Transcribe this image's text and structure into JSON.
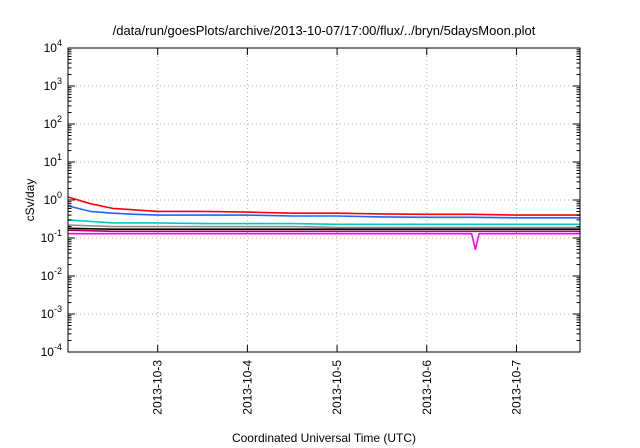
{
  "chart_data": {
    "type": "line",
    "title": "/data/run/goesPlots/archive/2013-10-07/17:00/flux/../bryn/5daysMoon.plot",
    "xlabel": "Coordinated Universal Time (UTC)",
    "ylabel": "cSv/day",
    "yscale": "log",
    "ylim": [
      0.0001,
      10000
    ],
    "xlim": [
      "2013-10-02T00:00",
      "2013-10-07T17:00"
    ],
    "y_ticks": [
      {
        "base": "10",
        "exp": "-4"
      },
      {
        "base": "10",
        "exp": "-3"
      },
      {
        "base": "10",
        "exp": "-2"
      },
      {
        "base": "10",
        "exp": "-1"
      },
      {
        "base": "10",
        "exp": "0"
      },
      {
        "base": "10",
        "exp": "1"
      },
      {
        "base": "10",
        "exp": "2"
      },
      {
        "base": "10",
        "exp": "3"
      },
      {
        "base": "10",
        "exp": "4"
      }
    ],
    "x_ticks": [
      "2013-10-3",
      "2013-10-4",
      "2013-10-5",
      "2013-10-6",
      "2013-10-7"
    ],
    "grid": true,
    "series": [
      {
        "color": "#ff0000",
        "x": [
          "2013-10-02T00:00",
          "2013-10-02T06:00",
          "2013-10-02T12:00",
          "2013-10-02T18:00",
          "2013-10-03T00:00",
          "2013-10-03T12:00",
          "2013-10-04T00:00",
          "2013-10-04T12:00",
          "2013-10-05T00:00",
          "2013-10-05T12:00",
          "2013-10-06T00:00",
          "2013-10-06T12:00",
          "2013-10-07T00:00",
          "2013-10-07T12:00",
          "2013-10-07T17:00"
        ],
        "values": [
          1.2,
          0.8,
          0.6,
          0.55,
          0.5,
          0.5,
          0.48,
          0.45,
          0.45,
          0.43,
          0.42,
          0.42,
          0.4,
          0.4,
          0.4
        ]
      },
      {
        "color": "#1e64ff",
        "x": [
          "2013-10-02T00:00",
          "2013-10-02T06:00",
          "2013-10-02T12:00",
          "2013-10-02T18:00",
          "2013-10-03T00:00",
          "2013-10-03T12:00",
          "2013-10-04T00:00",
          "2013-10-04T12:00",
          "2013-10-05T00:00",
          "2013-10-05T12:00",
          "2013-10-06T00:00",
          "2013-10-06T12:00",
          "2013-10-07T00:00",
          "2013-10-07T12:00",
          "2013-10-07T17:00"
        ],
        "values": [
          0.7,
          0.5,
          0.45,
          0.42,
          0.4,
          0.4,
          0.4,
          0.38,
          0.38,
          0.36,
          0.35,
          0.35,
          0.34,
          0.34,
          0.34
        ]
      },
      {
        "color": "#00c8c8",
        "x": [
          "2013-10-02T00:00",
          "2013-10-02T12:00",
          "2013-10-03T00:00",
          "2013-10-03T12:00",
          "2013-10-04T00:00",
          "2013-10-04T12:00",
          "2013-10-05T00:00",
          "2013-10-05T12:00",
          "2013-10-06T00:00",
          "2013-10-06T12:00",
          "2013-10-07T00:00",
          "2013-10-07T12:00",
          "2013-10-07T17:00"
        ],
        "values": [
          0.3,
          0.25,
          0.25,
          0.24,
          0.24,
          0.24,
          0.23,
          0.23,
          0.23,
          0.23,
          0.23,
          0.23,
          0.23
        ]
      },
      {
        "color": "#8c8c8c",
        "x": [
          "2013-10-02T00:00",
          "2013-10-02T12:00",
          "2013-10-03T00:00",
          "2013-10-03T12:00",
          "2013-10-04T00:00",
          "2013-10-04T12:00",
          "2013-10-05T00:00",
          "2013-10-05T12:00",
          "2013-10-06T00:00",
          "2013-10-06T12:00",
          "2013-10-07T00:00",
          "2013-10-07T12:00",
          "2013-10-07T17:00"
        ],
        "values": [
          0.22,
          0.2,
          0.2,
          0.2,
          0.2,
          0.2,
          0.19,
          0.19,
          0.19,
          0.19,
          0.19,
          0.19,
          0.19
        ]
      },
      {
        "color": "#000000",
        "x": [
          "2013-10-02T00:00",
          "2013-10-02T12:00",
          "2013-10-03T00:00",
          "2013-10-03T12:00",
          "2013-10-04T00:00",
          "2013-10-04T12:00",
          "2013-10-05T00:00",
          "2013-10-05T12:00",
          "2013-10-06T00:00",
          "2013-10-06T12:00",
          "2013-10-07T00:00",
          "2013-10-07T12:00",
          "2013-10-07T17:00"
        ],
        "values": [
          0.18,
          0.17,
          0.17,
          0.17,
          0.17,
          0.17,
          0.17,
          0.17,
          0.17,
          0.17,
          0.17,
          0.17,
          0.17
        ]
      },
      {
        "color": "#b4005a",
        "x": [
          "2013-10-02T00:00",
          "2013-10-02T12:00",
          "2013-10-03T00:00",
          "2013-10-03T12:00",
          "2013-10-04T00:00",
          "2013-10-04T12:00",
          "2013-10-05T00:00",
          "2013-10-05T12:00",
          "2013-10-06T00:00",
          "2013-10-06T12:00",
          "2013-10-07T00:00",
          "2013-10-07T12:00",
          "2013-10-07T17:00"
        ],
        "values": [
          0.16,
          0.15,
          0.15,
          0.15,
          0.15,
          0.15,
          0.15,
          0.15,
          0.15,
          0.15,
          0.15,
          0.15,
          0.15
        ]
      },
      {
        "color": "#ff00ff",
        "x": [
          "2013-10-02T00:00",
          "2013-10-02T12:00",
          "2013-10-03T00:00",
          "2013-10-03T12:00",
          "2013-10-04T00:00",
          "2013-10-04T12:00",
          "2013-10-05T00:00",
          "2013-10-05T12:00",
          "2013-10-06T00:00",
          "2013-10-06T12:00",
          "2013-10-06T13:00",
          "2013-10-06T14:00",
          "2013-10-07T00:00",
          "2013-10-07T12:00",
          "2013-10-07T17:00"
        ],
        "values": [
          0.13,
          0.13,
          0.13,
          0.13,
          0.13,
          0.13,
          0.13,
          0.13,
          0.13,
          0.13,
          0.05,
          0.13,
          0.13,
          0.13,
          0.13
        ]
      }
    ]
  }
}
